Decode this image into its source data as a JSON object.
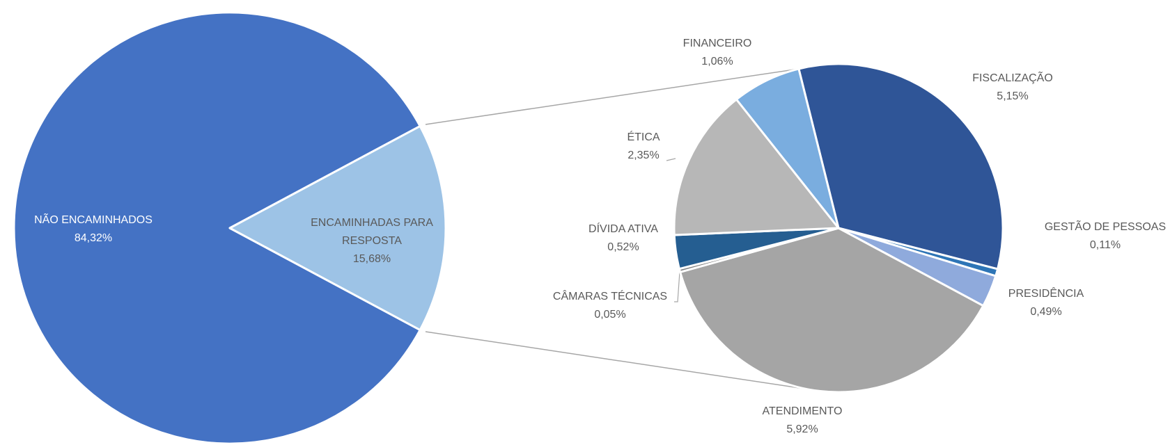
{
  "chart_data": [
    {
      "type": "pie",
      "categories": [
        "NÃO ENCAMINHADOS",
        "ENCAMINHADAS PARA RESPOSTA"
      ],
      "values": [
        84.32,
        15.68
      ],
      "value_labels": [
        "84,32%",
        "15,68%"
      ],
      "colors": [
        "#4472c4",
        "#9dc3e6"
      ]
    },
    {
      "type": "pie",
      "categories": [
        "FISCALIZAÇÃO",
        "GESTÃO DE PESSOAS",
        "PRESIDÊNCIA",
        "ATENDIMENTO",
        "CÂMARAS TÉCNICAS",
        "DÍVIDA ATIVA",
        "ÉTICA",
        "FINANCEIRO"
      ],
      "values": [
        5.15,
        0.11,
        0.49,
        5.92,
        0.05,
        0.52,
        2.35,
        1.06
      ],
      "value_labels": [
        "5,15%",
        "0,11%",
        "0,49%",
        "5,92%",
        "0,05%",
        "0,52%",
        "2,35%",
        "1,06%"
      ],
      "colors": [
        "#2f5597",
        "#2e75b6",
        "#8faadc",
        "#a5a5a5",
        "#7f7f7f",
        "#255e91",
        "#b7b7b7",
        "#7aaddf"
      ]
    }
  ]
}
